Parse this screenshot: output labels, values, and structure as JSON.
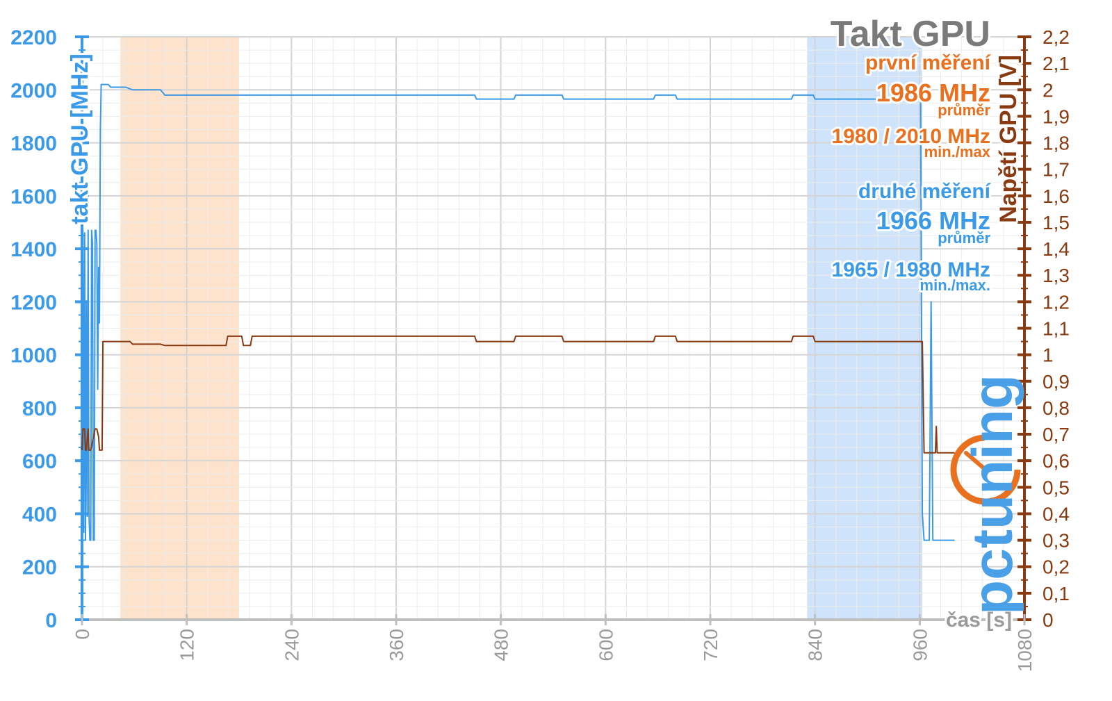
{
  "chart_data": {
    "type": "line",
    "title": "Takt GPU",
    "xlabel": "čas [s]",
    "ylabel": "takt GPU [MHz]",
    "y2label": "Napětí GPU [V]",
    "xlim": [
      0,
      1080
    ],
    "ylim": [
      0,
      2200
    ],
    "y2lim": [
      0,
      2.2
    ],
    "x_ticks": [
      0,
      120,
      240,
      360,
      480,
      600,
      720,
      840,
      960,
      1080
    ],
    "x_tick_labels": [
      "0",
      "120",
      "240",
      "360",
      "480",
      "600",
      "720",
      "840",
      "960",
      "1080"
    ],
    "y_ticks": [
      0,
      200,
      400,
      600,
      800,
      1000,
      1200,
      1400,
      1600,
      1800,
      2000,
      2200
    ],
    "y_tick_labels": [
      "0",
      "200",
      "400",
      "600",
      "800",
      "1000",
      "1200",
      "1400",
      "1600",
      "1800",
      "2000",
      "2200"
    ],
    "y2_ticks": [
      0,
      0.1,
      0.2,
      0.3,
      0.4,
      0.5,
      0.6,
      0.7,
      0.8,
      0.9,
      1.0,
      1.1,
      1.2,
      1.3,
      1.4,
      1.5,
      1.6,
      1.7,
      1.8,
      1.9,
      2.0,
      2.1,
      2.2
    ],
    "y2_tick_labels": [
      "0",
      "0,1",
      "0,2",
      "0,3",
      "0,4",
      "0,5",
      "0,6",
      "0,7",
      "0,8",
      "0,9",
      "1",
      "1,1",
      "1,2",
      "1,3",
      "1,4",
      "1,5",
      "1,6",
      "1,7",
      "1,8",
      "1,9",
      "2",
      "2,1",
      "2,2"
    ],
    "grid": true,
    "shaded_regions": [
      {
        "x_start": 44,
        "x_end": 180,
        "color": "#fde3cc"
      },
      {
        "x_start": 831,
        "x_end": 963,
        "color": "#cfe4fa"
      }
    ],
    "series": [
      {
        "axis": "left",
        "color": "#3a9ae8",
        "x": [
          0,
          1,
          2,
          3,
          4,
          5,
          6,
          7,
          8,
          9,
          10,
          11,
          12,
          13,
          14,
          15,
          16,
          17,
          18,
          19,
          20,
          21,
          22,
          23,
          24,
          25,
          26,
          27,
          28,
          29,
          30,
          33,
          50,
          58,
          90,
          95,
          180,
          300,
          450,
          452,
          495,
          497,
          550,
          552,
          655,
          657,
          680,
          682,
          813,
          815,
          838,
          840,
          900,
          961,
          963,
          965,
          967,
          969,
          971,
          973,
          975,
          977,
          980,
          1000
        ],
        "y": [
          300,
          1470,
          330,
          1460,
          300,
          1200,
          390,
          1470,
          400,
          300,
          300,
          1470,
          1420,
          300,
          300,
          1470,
          1470,
          1420,
          870,
          1330,
          1120,
          1850,
          2020,
          2020,
          2020,
          2020,
          2020,
          2020,
          2020,
          2020,
          2020,
          2010,
          2010,
          2000,
          2000,
          1980,
          1980,
          1980,
          1980,
          1965,
          1965,
          1980,
          1980,
          1965,
          1965,
          1980,
          1980,
          1965,
          1965,
          1980,
          1980,
          1965,
          1965,
          1965,
          400,
          300,
          300,
          300,
          300,
          1200,
          300,
          300,
          300,
          300
        ]
      },
      {
        "axis": "right",
        "color": "#8a3a10",
        "x": [
          0,
          1,
          3,
          4,
          5,
          7,
          8,
          10,
          15,
          17,
          19,
          20,
          23,
          24,
          25,
          30,
          55,
          58,
          90,
          95,
          165,
          167,
          183,
          185,
          193,
          195,
          300,
          450,
          452,
          495,
          497,
          550,
          552,
          655,
          657,
          680,
          682,
          813,
          815,
          838,
          840,
          900,
          963,
          965,
          978,
          979,
          980,
          981,
          1000
        ],
        "y": [
          0.64,
          0.72,
          0.72,
          0.64,
          0.64,
          0.72,
          0.64,
          0.64,
          0.72,
          0.72,
          0.69,
          0.64,
          0.64,
          1.05,
          1.05,
          1.05,
          1.05,
          1.04,
          1.04,
          1.035,
          1.035,
          1.07,
          1.07,
          1.035,
          1.035,
          1.07,
          1.07,
          1.07,
          1.05,
          1.05,
          1.07,
          1.07,
          1.05,
          1.05,
          1.07,
          1.07,
          1.05,
          1.05,
          1.07,
          1.07,
          1.05,
          1.05,
          1.05,
          0.63,
          0.63,
          0.73,
          0.63,
          0.63,
          0.63
        ]
      }
    ],
    "annotations": {
      "first_label": "první měření",
      "first_avg": "1986 MHz",
      "first_avg_sub": "průměr",
      "first_minmax": "1980 / 2010 MHz",
      "first_minmax_sub": "min./max",
      "second_label": "druhé měření",
      "second_avg": "1966 MHz",
      "second_avg_sub": "průměr",
      "second_minmax": "1965 / 1980 MHz",
      "second_minmax_sub": "min./max."
    }
  },
  "logo": {
    "text": "pctuning",
    "color_pc": "#e8701e",
    "color_tuning": "#4aa0e6"
  }
}
